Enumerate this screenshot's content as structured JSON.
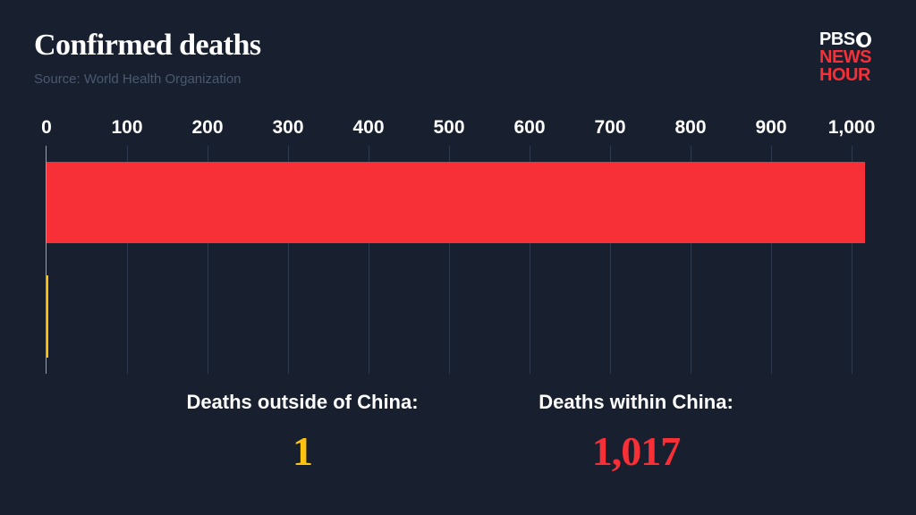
{
  "header": {
    "title": "Confirmed deaths",
    "source": "Source: World Health Organization"
  },
  "logo": {
    "line1": "PBS",
    "line2": "NEWS",
    "line3": "HOUR"
  },
  "colors": {
    "background": "#18202f",
    "china": "#f72f37",
    "outside": "#ffc20e",
    "source_text": "#4a5870"
  },
  "stats": {
    "outside": {
      "label": "Deaths outside of China:",
      "value": "1"
    },
    "china": {
      "label": "Deaths within China:",
      "value": "1,017"
    }
  },
  "chart_data": {
    "type": "bar",
    "orientation": "horizontal",
    "title": "Confirmed deaths",
    "subtitle": "Source: World Health Organization",
    "categories": [
      "Deaths within China",
      "Deaths outside of China"
    ],
    "values": [
      1017,
      1
    ],
    "colors": [
      "#f72f37",
      "#ffc20e"
    ],
    "xlabel": "",
    "ylabel": "",
    "xlim": [
      0,
      1017
    ],
    "x_ticks": [
      "0",
      "100",
      "200",
      "300",
      "400",
      "500",
      "600",
      "700",
      "800",
      "900",
      "1,000"
    ],
    "x_tick_values": [
      0,
      100,
      200,
      300,
      400,
      500,
      600,
      700,
      800,
      900,
      1000
    ],
    "axis_position": "top",
    "grid": true,
    "legend": "none"
  }
}
